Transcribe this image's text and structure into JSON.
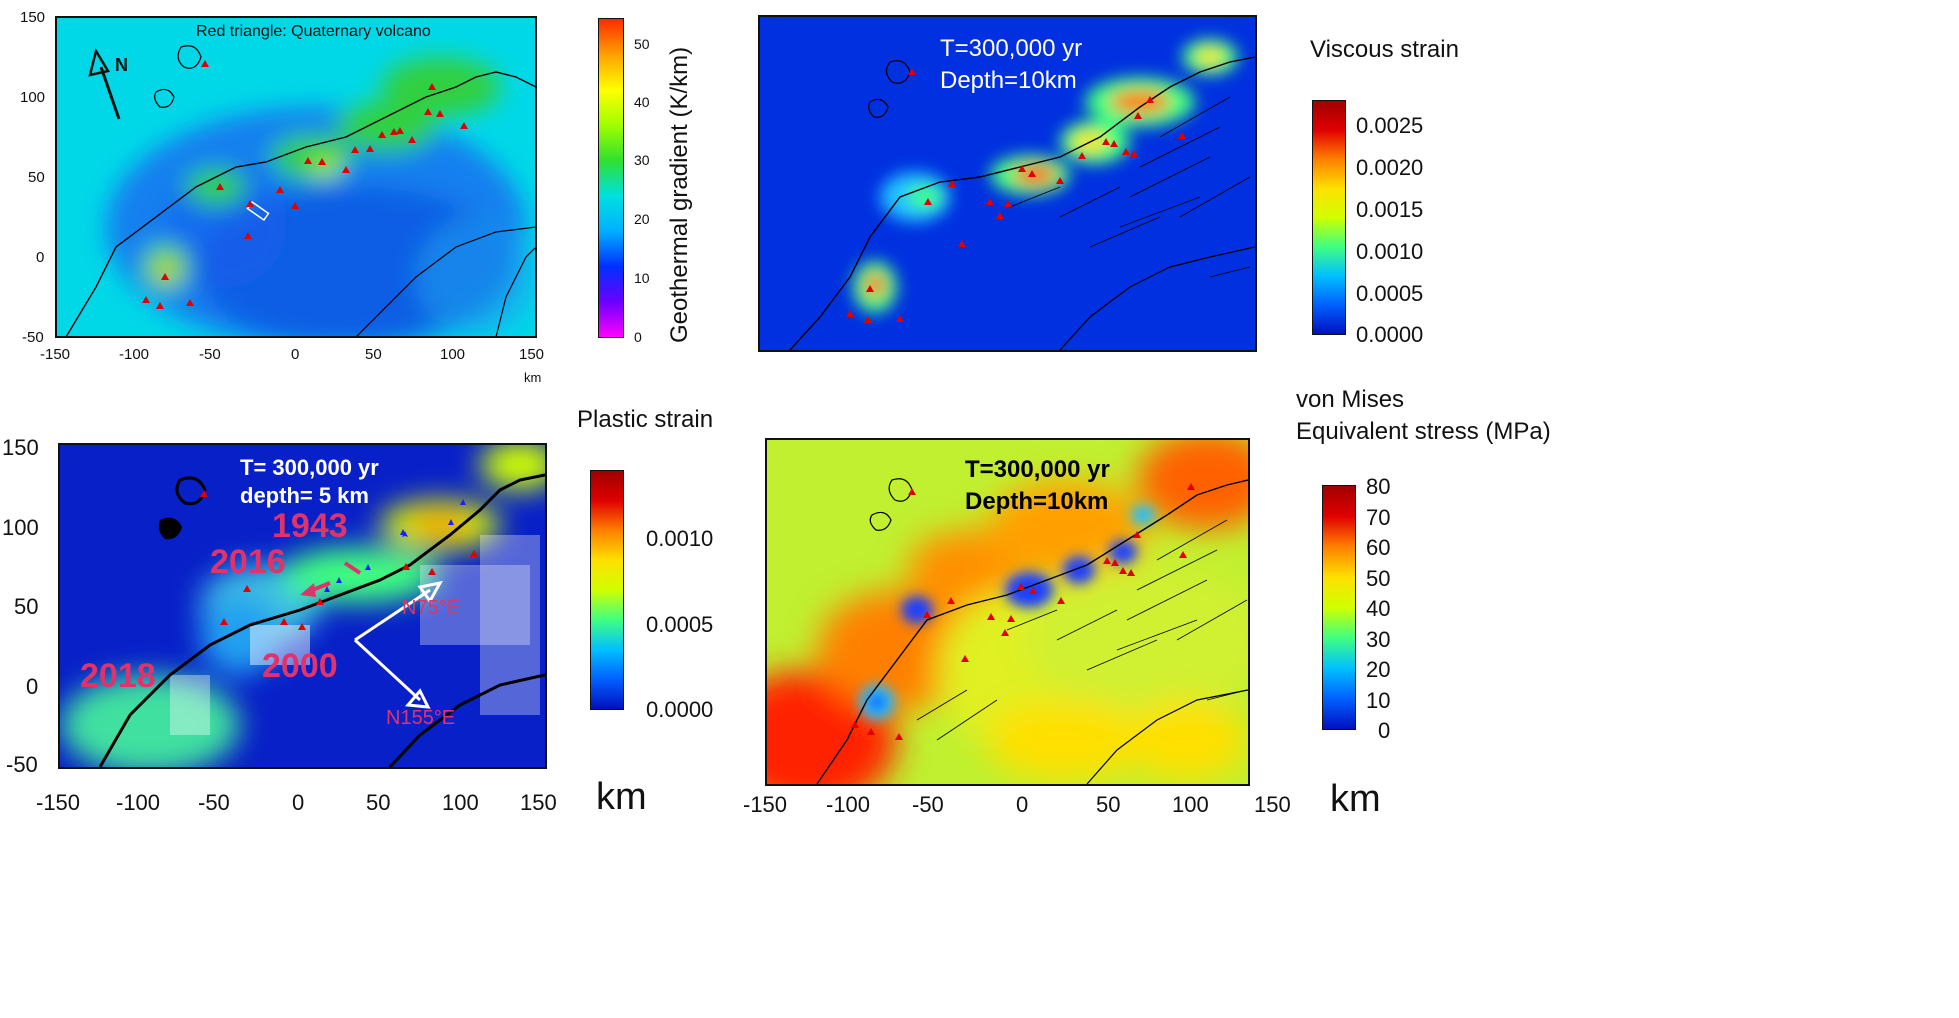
{
  "panel_a": {
    "note": "Red triangle: Quaternary volcano",
    "north_label": "N",
    "x_ticks": [
      "-150",
      "-100",
      "-50",
      "0",
      "50",
      "100",
      "150"
    ],
    "y_ticks": [
      "150",
      "100",
      "50",
      "0",
      "-50"
    ],
    "x_unit": "km",
    "colorbar": {
      "title": "Geothermal gradient (K/km)",
      "ticks": [
        "50",
        "40",
        "30",
        "20",
        "10",
        "0"
      ],
      "colors": [
        "#ff00ff",
        "#6a00ff",
        "#0030ff",
        "#00b0ff",
        "#00e0e0",
        "#30e030",
        "#a0ff00",
        "#ffff00",
        "#ffa000",
        "#ff2a00"
      ]
    }
  },
  "panel_b": {
    "time_label": "T=300,000 yr",
    "depth_label": "Depth=10km",
    "colorbar": {
      "title": "Viscous strain",
      "ticks": [
        "0.0025",
        "0.0020",
        "0.0015",
        "0.0010",
        "0.0005",
        "0.0000"
      ],
      "colors": [
        "#0010c0",
        "#0060ff",
        "#00c0ff",
        "#40ff80",
        "#d0ff00",
        "#ffe000",
        "#ff8000",
        "#e00000",
        "#a00000"
      ]
    }
  },
  "panel_c": {
    "time_label": "T= 300,000 yr",
    "depth_label": "depth= 5 km",
    "events": [
      "1943",
      "2016",
      "2000",
      "2018"
    ],
    "directions": [
      "N75°E",
      "N155°E"
    ],
    "x_ticks": [
      "-150",
      "-100",
      "-50",
      "0",
      "50",
      "100",
      "150"
    ],
    "y_ticks": [
      "150",
      "100",
      "50",
      "0",
      "-50"
    ],
    "x_unit": "km",
    "colorbar": {
      "title": "Plastic strain",
      "ticks": [
        "0.0010",
        "0.0005",
        "0.0000"
      ],
      "colors": [
        "#0010c0",
        "#0060ff",
        "#00c0ff",
        "#40ff80",
        "#d0ff00",
        "#ffe000",
        "#ff8000",
        "#e00000",
        "#a00000"
      ]
    }
  },
  "panel_d": {
    "time_label": "T=300,000 yr",
    "depth_label": "Depth=10km",
    "x_ticks": [
      "-150",
      "-100",
      "-50",
      "0",
      "50",
      "100",
      "150"
    ],
    "x_unit": "km",
    "colorbar": {
      "title_line1": "von Mises",
      "title_line2": "Equivalent stress (MPa)",
      "ticks": [
        "80",
        "70",
        "60",
        "50",
        "40",
        "30",
        "20",
        "10",
        "0"
      ],
      "colors": [
        "#0010c0",
        "#0060ff",
        "#00c0ff",
        "#40ff80",
        "#d0ff00",
        "#ffe000",
        "#ff8000",
        "#e00000",
        "#a00000"
      ]
    }
  }
}
